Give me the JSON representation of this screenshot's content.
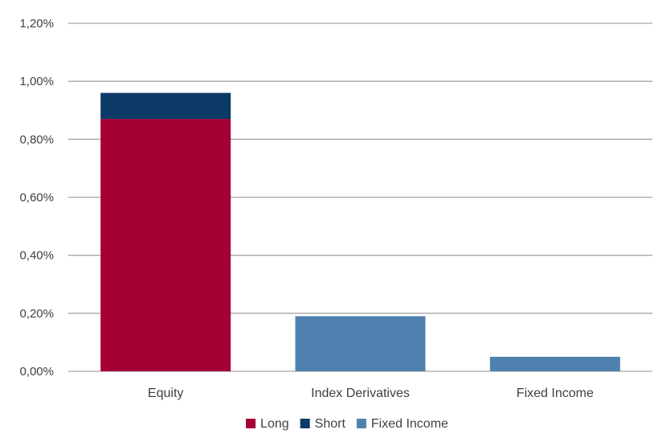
{
  "chart_data": {
    "type": "bar",
    "stacked": true,
    "categories": [
      "Equity",
      "Index Derivatives",
      "Fixed Income"
    ],
    "series": [
      {
        "name": "Long",
        "color": "#a50034",
        "values": [
          0.87,
          0,
          0
        ]
      },
      {
        "name": "Short",
        "color": "#0c3a66",
        "values": [
          0.09,
          0,
          0
        ]
      },
      {
        "name": "Fixed Income",
        "color": "#4f81b0",
        "values": [
          0,
          0.19,
          0.05
        ]
      }
    ],
    "y_ticks": [
      "0,00%",
      "0,20%",
      "0,40%",
      "0,60%",
      "0,80%",
      "1,00%",
      "1,20%"
    ],
    "ylim": [
      0,
      1.2
    ],
    "grid": true,
    "legend_position": "bottom",
    "title": "",
    "xlabel": "",
    "ylabel": ""
  }
}
